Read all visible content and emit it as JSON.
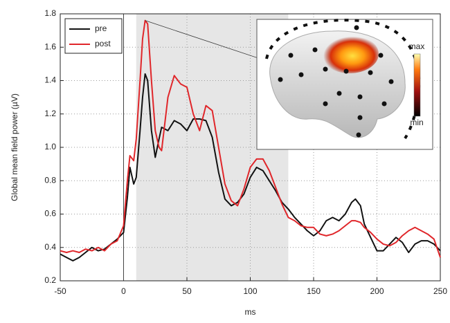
{
  "chart_data": {
    "type": "line",
    "x_label": "ms",
    "y_label": "Global mean field power (µV)",
    "x": [
      -50,
      -45,
      -40,
      -35,
      -30,
      -25,
      -20,
      -15,
      -10,
      -5,
      0,
      3,
      5,
      8,
      10,
      13,
      15,
      17,
      19,
      22,
      25,
      28,
      30,
      35,
      40,
      45,
      50,
      55,
      60,
      65,
      70,
      75,
      80,
      85,
      90,
      95,
      100,
      105,
      110,
      115,
      120,
      125,
      130,
      135,
      140,
      145,
      150,
      155,
      160,
      165,
      170,
      175,
      180,
      183,
      187,
      190,
      195,
      200,
      205,
      210,
      215,
      220,
      225,
      230,
      235,
      240,
      245,
      250
    ],
    "series": [
      {
        "name": "pre",
        "color": "#111111",
        "values": [
          0.36,
          0.34,
          0.32,
          0.34,
          0.37,
          0.4,
          0.38,
          0.39,
          0.42,
          0.45,
          0.49,
          0.7,
          0.88,
          0.78,
          0.82,
          1.1,
          1.3,
          1.44,
          1.4,
          1.1,
          0.94,
          1.05,
          1.12,
          1.1,
          1.16,
          1.14,
          1.1,
          1.17,
          1.17,
          1.16,
          1.06,
          0.85,
          0.69,
          0.65,
          0.67,
          0.72,
          0.82,
          0.88,
          0.86,
          0.8,
          0.74,
          0.67,
          0.63,
          0.58,
          0.54,
          0.5,
          0.47,
          0.5,
          0.56,
          0.58,
          0.56,
          0.6,
          0.67,
          0.69,
          0.65,
          0.54,
          0.46,
          0.38,
          0.38,
          0.42,
          0.46,
          0.43,
          0.37,
          0.42,
          0.44,
          0.44,
          0.42,
          0.38
        ]
      },
      {
        "name": "post",
        "color": "#e0262a",
        "values": [
          0.38,
          0.37,
          0.38,
          0.37,
          0.39,
          0.38,
          0.4,
          0.38,
          0.42,
          0.44,
          0.53,
          0.8,
          0.95,
          0.92,
          1.05,
          1.4,
          1.65,
          1.76,
          1.74,
          1.4,
          1.1,
          1.0,
          0.98,
          1.3,
          1.43,
          1.38,
          1.36,
          1.2,
          1.1,
          1.25,
          1.22,
          1.0,
          0.78,
          0.68,
          0.65,
          0.75,
          0.88,
          0.93,
          0.93,
          0.86,
          0.76,
          0.66,
          0.58,
          0.56,
          0.53,
          0.52,
          0.52,
          0.48,
          0.47,
          0.48,
          0.5,
          0.53,
          0.56,
          0.56,
          0.55,
          0.52,
          0.49,
          0.45,
          0.42,
          0.41,
          0.43,
          0.47,
          0.5,
          0.52,
          0.5,
          0.48,
          0.45,
          0.34
        ]
      }
    ],
    "xlim": [
      -50,
      250
    ],
    "xticks": [
      -50,
      0,
      50,
      100,
      150,
      200,
      250
    ],
    "ylim": [
      0.2,
      1.8
    ],
    "yticks": [
      0.2,
      0.4,
      0.6,
      0.8,
      {
        "value": 1.0,
        "label": "1.0"
      },
      1.2,
      1.4,
      1.6,
      1.8
    ],
    "shaded_region": [
      10,
      130
    ],
    "shade_color": "#e6e6e6",
    "grid": true,
    "legend": "upper left",
    "colorbar_labels": [
      "max",
      "min"
    ]
  }
}
